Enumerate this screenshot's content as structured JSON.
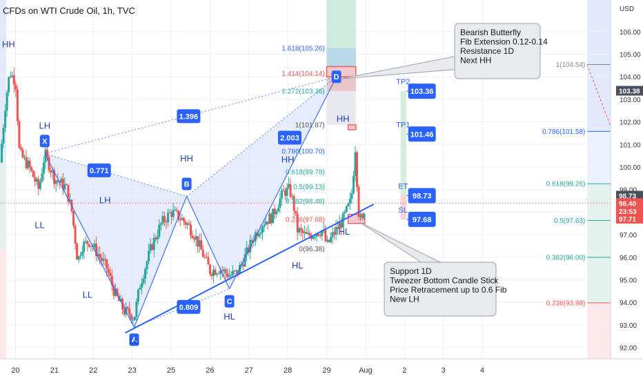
{
  "chart_data": {
    "type": "candlestick",
    "title": "CFDs on WTI Crude Oil, 1h, TVC",
    "y_axis": {
      "unit_label": "USD",
      "ylim": [
        91.5,
        107.4
      ],
      "ticks": [
        106.0,
        105.0,
        104.0,
        103.0,
        102.0,
        101.0,
        100.0,
        99.0,
        98.0,
        97.0,
        96.0,
        95.0,
        94.0,
        93.0,
        92.0
      ]
    },
    "x_axis": {
      "xlim": [
        19.6,
        35.3
      ],
      "ticks": [
        {
          "x": 20,
          "label": "20"
        },
        {
          "x": 21,
          "label": "21"
        },
        {
          "x": 22,
          "label": "22"
        },
        {
          "x": 23,
          "label": "23"
        },
        {
          "x": 24,
          "label": "25"
        },
        {
          "x": 25,
          "label": "26"
        },
        {
          "x": 26,
          "label": "27"
        },
        {
          "x": 27,
          "label": "28"
        },
        {
          "x": 28,
          "label": "29"
        },
        {
          "x": 29,
          "label": "Aug"
        },
        {
          "x": 30,
          "label": "2"
        },
        {
          "x": 31,
          "label": "3"
        },
        {
          "x": 32,
          "label": "4"
        }
      ]
    },
    "colors": {
      "up": "#26a69a",
      "down": "#ef5350",
      "pattern_line": "#2962ff",
      "pattern_fill": "#dfe6fb",
      "last_price": "#ef5350",
      "badge": "#2962ff"
    },
    "price_path": [
      [
        19.6,
        100.2
      ],
      [
        19.75,
        103.0
      ],
      [
        19.85,
        104.2
      ],
      [
        20.0,
        103.8
      ],
      [
        20.1,
        100.6
      ],
      [
        20.35,
        100.0
      ],
      [
        20.6,
        99.0
      ],
      [
        20.75,
        100.6
      ],
      [
        21.0,
        99.5
      ],
      [
        21.3,
        99.1
      ],
      [
        21.45,
        98.0
      ],
      [
        21.6,
        95.8
      ],
      [
        21.7,
        96.5
      ],
      [
        21.9,
        96.7
      ],
      [
        22.1,
        96.2
      ],
      [
        22.35,
        95.5
      ],
      [
        22.55,
        94.4
      ],
      [
        22.8,
        93.6
      ],
      [
        22.95,
        93.5
      ],
      [
        23.05,
        93.3
      ],
      [
        23.2,
        94.8
      ],
      [
        23.5,
        96.5
      ],
      [
        23.75,
        97.5
      ],
      [
        24.0,
        98.0
      ],
      [
        24.2,
        97.8
      ],
      [
        24.4,
        97.5
      ],
      [
        24.6,
        97.0
      ],
      [
        24.85,
        96.0
      ],
      [
        25.0,
        95.4
      ],
      [
        25.25,
        95.5
      ],
      [
        25.5,
        95.2
      ],
      [
        25.7,
        95.3
      ],
      [
        25.95,
        96.2
      ],
      [
        26.15,
        97.0
      ],
      [
        26.4,
        97.6
      ],
      [
        26.6,
        97.8
      ],
      [
        26.75,
        98.4
      ],
      [
        26.9,
        98.9
      ],
      [
        27.05,
        99.0
      ],
      [
        27.15,
        98.3
      ],
      [
        27.25,
        97.2
      ],
      [
        27.5,
        96.9
      ],
      [
        27.7,
        97.1
      ],
      [
        27.9,
        97.2
      ],
      [
        28.0,
        96.5
      ],
      [
        28.2,
        97.1
      ],
      [
        28.4,
        97.6
      ],
      [
        28.6,
        98.4
      ],
      [
        28.65,
        98.9
      ],
      [
        28.75,
        101.2
      ],
      [
        28.8,
        98.2
      ],
      [
        28.9,
        97.4
      ],
      [
        28.98,
        98.4
      ]
    ],
    "candle_step": 0.045,
    "up_seed": 7,
    "pattern": {
      "name": "Bearish Butterfly",
      "points": [
        {
          "label": "X",
          "x": 20.75,
          "y": 100.6,
          "side": "top"
        },
        {
          "label": "A",
          "x": 23.05,
          "y": 92.9,
          "side": "bottom"
        },
        {
          "label": "B",
          "x": 24.4,
          "y": 98.7,
          "side": "top"
        },
        {
          "label": "C",
          "x": 25.5,
          "y": 94.6,
          "side": "bottom"
        },
        {
          "label": "D",
          "x": 28.25,
          "y": 104.0,
          "side": "left"
        }
      ],
      "ratios": [
        {
          "label": "0.771",
          "x": 22.15,
          "y": 99.85
        },
        {
          "label": "1.396",
          "x": 24.45,
          "y": 102.25
        },
        {
          "label": "0.809",
          "x": 24.45,
          "y": 93.8
        },
        {
          "label": "2.003",
          "x": 27.05,
          "y": 101.3
        }
      ]
    },
    "swing_labels": [
      {
        "text": "HH",
        "x": 19.82,
        "y": 105.3
      },
      {
        "text": "LH",
        "x": 20.75,
        "y": 101.7
      },
      {
        "text": "LL",
        "x": 20.62,
        "y": 97.3
      },
      {
        "text": "LH",
        "x": 22.3,
        "y": 98.4
      },
      {
        "text": "LL",
        "x": 21.85,
        "y": 94.2
      },
      {
        "text": "HH",
        "x": 24.4,
        "y": 100.25
      },
      {
        "text": "LL",
        "x": 23.05,
        "y": 92.15
      },
      {
        "text": "HL",
        "x": 25.5,
        "y": 93.25
      },
      {
        "text": "HH",
        "x": 27.0,
        "y": 100.2
      },
      {
        "text": "HL",
        "x": 27.25,
        "y": 95.5
      },
      {
        "text": "HH",
        "x": 28.42,
        "y": 102.0
      },
      {
        "text": "HL",
        "x": 28.45,
        "y": 97.0
      }
    ],
    "trendline": {
      "x1": 22.82,
      "y1": 92.65,
      "x2": 29.21,
      "y2": 98.35
    },
    "fib_left": [
      {
        "label": "1.618(105.26)",
        "y": 105.26,
        "color": "#2962ff"
      },
      {
        "label": "1.414(104.14)",
        "y": 104.14,
        "color": "#ef5350"
      },
      {
        "label": "1.272(103.36)",
        "y": 103.36,
        "color": "#26a69a"
      },
      {
        "label": "1(101.87)",
        "y": 101.87,
        "color": "#555555"
      },
      {
        "label": "0.786(100.70)",
        "y": 100.7,
        "color": "#2962ff"
      },
      {
        "label": "0.618(99.78)",
        "y": 99.78,
        "color": "#26a69a"
      },
      {
        "label": "0.5(99.13)",
        "y": 99.13,
        "color": "#26a69a"
      },
      {
        "label": "0.382(98.48)",
        "y": 98.48,
        "color": "#26a69a"
      },
      {
        "label": "0.236(97.68)",
        "y": 97.68,
        "color": "#ef5350"
      },
      {
        "label": "0(96.38)",
        "y": 96.38,
        "color": "#555555"
      }
    ],
    "fib_right": [
      {
        "label": "1(104.54)",
        "y": 104.54,
        "color": "#888888"
      },
      {
        "label": "0.786(101.58)",
        "y": 101.58,
        "color": "#2962ff"
      },
      {
        "label": "0.618(99.26)",
        "y": 99.26,
        "color": "#26a69a"
      },
      {
        "label": "0.5(97.63)",
        "y": 97.63,
        "color": "#26a69a"
      },
      {
        "label": "0.382(96.00)",
        "y": 96.0,
        "color": "#26a69a"
      },
      {
        "label": "0.236(93.98)",
        "y": 93.98,
        "color": "#ef5350"
      }
    ],
    "trade_levels": [
      {
        "name": "TP2",
        "y": 103.36
      },
      {
        "name": "TP1",
        "y": 101.46
      },
      {
        "name": "ET",
        "y": 98.73
      },
      {
        "name": "SL",
        "y": 97.68
      }
    ],
    "zones": [
      {
        "name": "resistance-zone-upper",
        "y1": 104.45,
        "y2": 104.0,
        "x1": 28.0,
        "x2": 28.75
      },
      {
        "name": "resistance-zone-hh",
        "y1": 101.87,
        "y2": 101.65,
        "x1": 28.55,
        "x2": 28.75
      },
      {
        "name": "support-zone",
        "y1": 97.9,
        "y2": 97.5,
        "x1": 28.55,
        "x2": 28.98
      }
    ],
    "callouts": [
      {
        "name": "resistance-callout",
        "lines": [
          "Bearish Butterfly",
          "Fib Extension 0.12-0.14",
          "Resistance 1D",
          "Next HH"
        ]
      },
      {
        "name": "support-callout",
        "lines": [
          "Support 1D",
          "Tweezer Bottom Candle Stick",
          "Price Retracement up to 0.6 Fib",
          "New LH"
        ]
      }
    ],
    "price_axis_labels": [
      {
        "text": "103.38",
        "y": 103.38,
        "bg": "#4a4f5c"
      },
      {
        "text": "98.73",
        "y": 98.73,
        "bg": "#4a4f5c"
      },
      {
        "text": "98.40",
        "y": 98.4,
        "bg": "#ef5350"
      },
      {
        "text": "23:53",
        "y": 98.05,
        "bg": "#ef5350"
      },
      {
        "text": "97.71",
        "y": 97.71,
        "bg": "#ef5350"
      }
    ],
    "last_price": 98.4
  }
}
